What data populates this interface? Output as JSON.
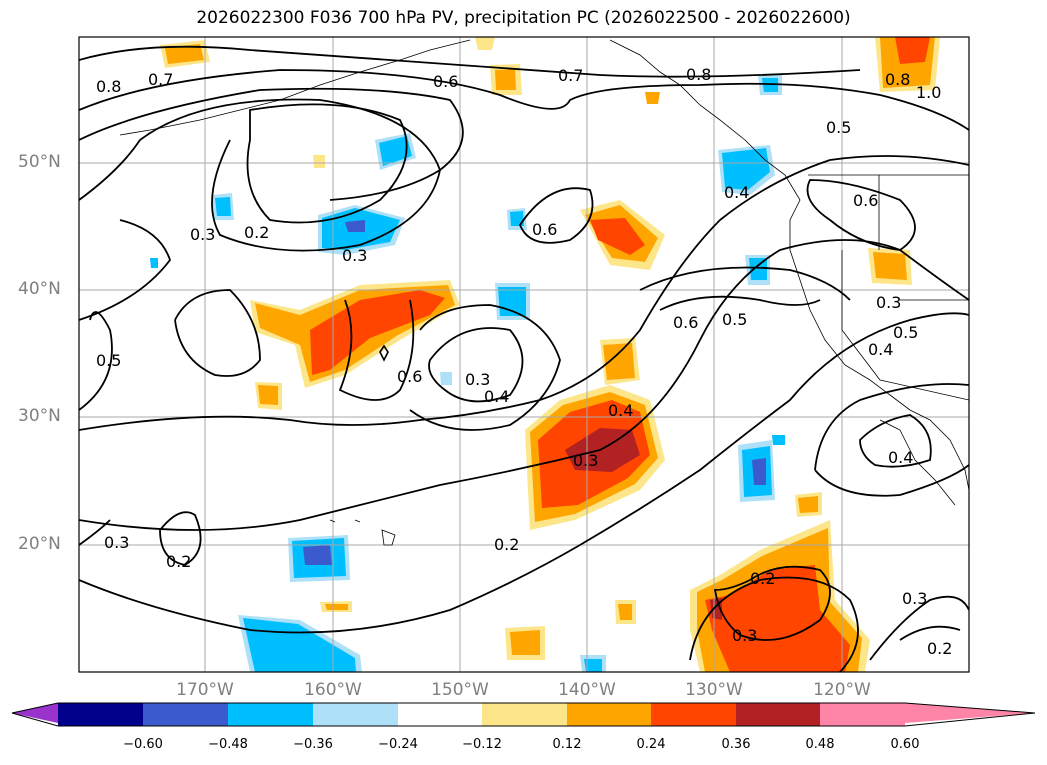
{
  "title": "2026022300 F036 700 hPa PV, precipitation PC (2026022500 - 2026022600)",
  "map": {
    "lat_labels": [
      "50°N",
      "40°N",
      "30°N",
      "20°N"
    ],
    "lon_labels": [
      "170°W",
      "160°W",
      "150°W",
      "140°W",
      "130°W",
      "120°W"
    ],
    "pv_contour_labels": [
      "0.8",
      "0.7",
      "0.6",
      "0.7",
      "0.8",
      "0.5",
      "1.0",
      "0.8",
      "0.2",
      "0.3",
      "0.6",
      "0.4",
      "0.6",
      "0.5",
      "0.6",
      "0.5",
      "0.3",
      "0.4",
      "0.3",
      "0.4",
      "0.6",
      "0.4",
      "0.3",
      "0.3",
      "0.5",
      "0.2",
      "0.2",
      "0.3",
      "0.3",
      "0.2",
      "0.3",
      "0.2",
      "0.4"
    ]
  },
  "colorbar": {
    "ticks": [
      "−0.60",
      "−0.48",
      "−0.36",
      "−0.24",
      "−0.12",
      "0.12",
      "0.24",
      "0.36",
      "0.48",
      "0.60"
    ],
    "colors": {
      "lt_min": "#9933cc",
      "n060": "#00008b",
      "n048": "#3a5acd",
      "n036": "#00bfff",
      "n024": "#aee0f8",
      "zero": "#ffffff",
      "p012": "#fde68a",
      "p024": "#ffa500",
      "p036": "#ff4500",
      "p048": "#b22222",
      "gt_max": "#ff85a8"
    }
  }
}
